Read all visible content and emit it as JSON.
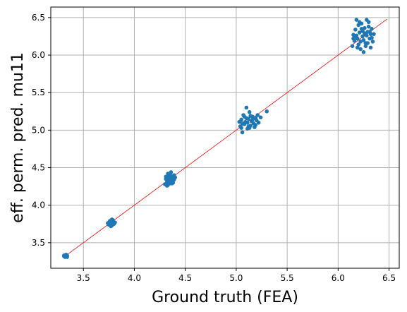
{
  "chart_data": {
    "type": "scatter",
    "title": "",
    "xlabel": "Ground truth (FEA)",
    "ylabel": "eff. perm. pred. mu11",
    "xlim": [
      3.18,
      6.6
    ],
    "ylim": [
      3.16,
      6.64
    ],
    "xticks": [
      3.5,
      4.0,
      4.5,
      5.0,
      5.5,
      6.0,
      6.5
    ],
    "yticks": [
      3.5,
      4.0,
      4.5,
      5.0,
      5.5,
      6.0,
      6.5
    ],
    "xtick_labels": [
      "3.5",
      "4.0",
      "4.5",
      "5.0",
      "5.5",
      "6.0",
      "6.5"
    ],
    "ytick_labels": [
      "3.5",
      "4.0",
      "4.5",
      "5.0",
      "5.5",
      "6.0",
      "6.5"
    ],
    "grid": true,
    "point_color": "#1f77b4",
    "reference_line": {
      "x": [
        3.32,
        6.48
      ],
      "y": [
        3.32,
        6.48
      ],
      "color": "#ff0000"
    },
    "points": [
      [
        3.31,
        3.32
      ],
      [
        3.32,
        3.33
      ],
      [
        3.33,
        3.32
      ],
      [
        3.34,
        3.33
      ],
      [
        3.32,
        3.31
      ],
      [
        3.33,
        3.34
      ],
      [
        3.34,
        3.31
      ],
      [
        3.31,
        3.33
      ],
      [
        3.74,
        3.76
      ],
      [
        3.76,
        3.74
      ],
      [
        3.77,
        3.78
      ],
      [
        3.78,
        3.73
      ],
      [
        3.75,
        3.77
      ],
      [
        3.79,
        3.8
      ],
      [
        3.76,
        3.79
      ],
      [
        3.78,
        3.76
      ],
      [
        3.77,
        3.72
      ],
      [
        3.8,
        3.75
      ],
      [
        3.79,
        3.78
      ],
      [
        3.75,
        3.74
      ],
      [
        3.78,
        3.81
      ],
      [
        3.76,
        3.77
      ],
      [
        3.81,
        3.77
      ],
      [
        3.77,
        3.75
      ],
      [
        4.3,
        4.28
      ],
      [
        4.32,
        4.33
      ],
      [
        4.33,
        4.27
      ],
      [
        4.35,
        4.36
      ],
      [
        4.31,
        4.35
      ],
      [
        4.36,
        4.31
      ],
      [
        4.34,
        4.4
      ],
      [
        4.37,
        4.38
      ],
      [
        4.33,
        4.42
      ],
      [
        4.38,
        4.34
      ],
      [
        4.32,
        4.3
      ],
      [
        4.35,
        4.29
      ],
      [
        4.39,
        4.4
      ],
      [
        4.36,
        4.44
      ],
      [
        4.31,
        4.38
      ],
      [
        4.4,
        4.37
      ],
      [
        4.34,
        4.32
      ],
      [
        4.37,
        4.29
      ],
      [
        4.33,
        4.36
      ],
      [
        4.35,
        4.41
      ],
      [
        4.38,
        4.3
      ],
      [
        4.32,
        4.26
      ],
      [
        4.36,
        4.35
      ],
      [
        4.39,
        4.34
      ],
      [
        5.04,
        5.05
      ],
      [
        5.05,
        5.14
      ],
      [
        5.06,
        4.97
      ],
      [
        5.07,
        5.2
      ],
      [
        5.08,
        5.08
      ],
      [
        5.09,
        5.11
      ],
      [
        5.1,
        5.3
      ],
      [
        5.11,
        5.02
      ],
      [
        5.12,
        5.15
      ],
      [
        5.13,
        5.24
      ],
      [
        5.14,
        5.06
      ],
      [
        5.15,
        5.12
      ],
      [
        5.16,
        5.18
      ],
      [
        5.17,
        5.09
      ],
      [
        5.18,
        5.04
      ],
      [
        5.19,
        5.16
      ],
      [
        5.2,
        5.13
      ],
      [
        5.21,
        5.2
      ],
      [
        5.22,
        5.1
      ],
      [
        5.24,
        5.17
      ],
      [
        5.3,
        5.25
      ],
      [
        5.08,
        5.18
      ],
      [
        5.11,
        5.1
      ],
      [
        5.13,
        5.03
      ],
      [
        5.06,
        5.09
      ],
      [
        5.16,
        5.14
      ],
      [
        5.19,
        5.07
      ],
      [
        5.1,
        5.16
      ],
      [
        5.05,
        5.03
      ],
      [
        5.14,
        5.19
      ],
      [
        5.03,
        5.11
      ],
      [
        5.12,
        5.05
      ],
      [
        6.14,
        6.12
      ],
      [
        6.15,
        6.27
      ],
      [
        6.16,
        6.19
      ],
      [
        6.17,
        6.34
      ],
      [
        6.18,
        6.47
      ],
      [
        6.19,
        6.22
      ],
      [
        6.2,
        6.14
      ],
      [
        6.21,
        6.3
      ],
      [
        6.22,
        6.08
      ],
      [
        6.23,
        6.42
      ],
      [
        6.24,
        6.25
      ],
      [
        6.25,
        6.2
      ],
      [
        6.26,
        6.36
      ],
      [
        6.27,
        6.16
      ],
      [
        6.28,
        6.47
      ],
      [
        6.29,
        6.31
      ],
      [
        6.3,
        6.44
      ],
      [
        6.31,
        6.22
      ],
      [
        6.32,
        6.1
      ],
      [
        6.33,
        6.35
      ],
      [
        6.34,
        6.18
      ],
      [
        6.35,
        6.28
      ],
      [
        6.2,
        6.4
      ],
      [
        6.25,
        6.04
      ],
      [
        6.28,
        6.26
      ],
      [
        6.22,
        6.18
      ],
      [
        6.17,
        6.24
      ],
      [
        6.3,
        6.38
      ],
      [
        6.24,
        6.32
      ],
      [
        6.32,
        6.28
      ],
      [
        6.19,
        6.1
      ],
      [
        6.27,
        6.12
      ],
      [
        6.21,
        6.44
      ],
      [
        6.33,
        6.23
      ],
      [
        6.26,
        6.29
      ],
      [
        6.15,
        6.22
      ],
      [
        6.29,
        6.16
      ],
      [
        6.23,
        6.35
      ],
      [
        6.31,
        6.31
      ],
      [
        6.18,
        6.26
      ]
    ]
  }
}
